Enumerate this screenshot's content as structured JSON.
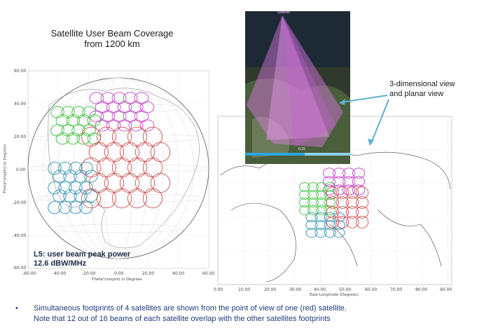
{
  "title": {
    "line1": "Satellite User Beam Coverage",
    "line2": "from 1200 km"
  },
  "left_plot": {
    "y_ticks": [
      "60.00",
      "40.00",
      "20.00",
      "0.00",
      "-20.00",
      "-40.00",
      "-60.00"
    ],
    "x_ticks": [
      "-60.00",
      "-40.00",
      "-20.00",
      "0.00",
      "20.00",
      "40.00",
      "60.00"
    ],
    "y_label": "Theta*sin(phi) in Degrees",
    "x_label": "Theta*cos(phi) in Degrees"
  },
  "right_map": {
    "x_ticks": [
      "0.00",
      "10.00",
      "20.00",
      "30.00",
      "40.00",
      "50.00",
      "60.00",
      "70.00",
      "80.00",
      "90.00"
    ],
    "x_label": "East Longitude (Degrees)"
  },
  "three_d": {
    "top_label": "Satellite",
    "bar_label": "0.15"
  },
  "l5_note": {
    "line1": "L5: user beam peak power",
    "line2": "12.6 dBW/MHz"
  },
  "annotation": {
    "line1": "3-dimensional view",
    "line2": "and planar view"
  },
  "bullet": {
    "symbol": "•",
    "line1": "Simultaneous footprints of 4 satellites are shown from the point of view of one (red) satellite.",
    "line2": "Note that 12 out of 16 beams of each satellite overlap with the other satellites footprints"
  },
  "colors": {
    "red": "#d05050",
    "purple": "#c040c8",
    "green": "#38c038",
    "teal": "#2a8fb0",
    "arrow": "#5fb0d0"
  }
}
